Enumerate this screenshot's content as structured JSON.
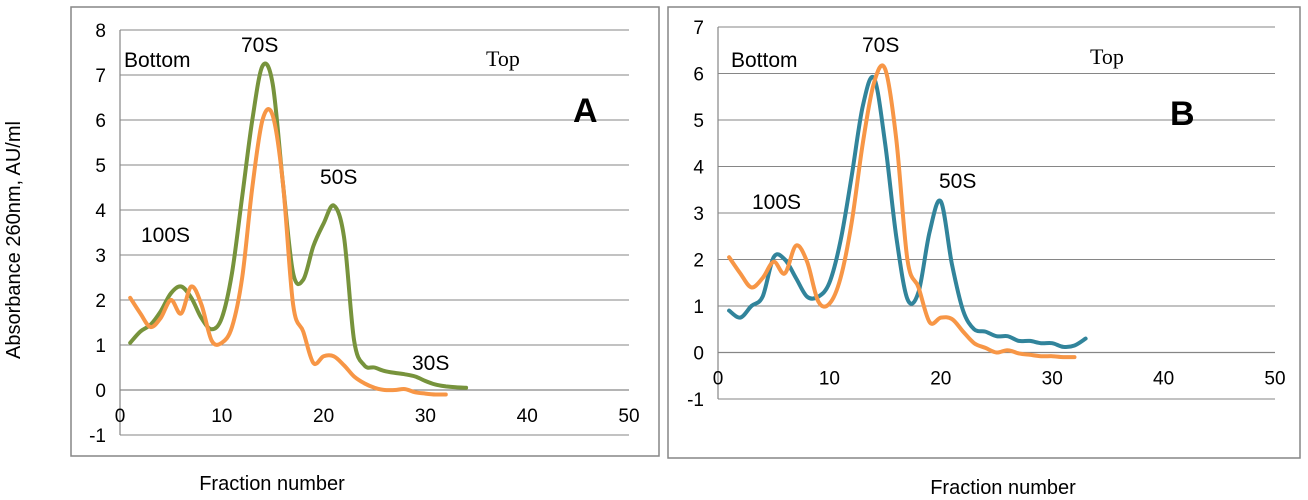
{
  "figure": {
    "ylabel": "Absorbance 260nm,  AU/ml"
  },
  "chart_data": [
    {
      "type": "line",
      "panel_label": "A",
      "xlabel": "Fraction number",
      "xlim": [
        0,
        50
      ],
      "ylim": [
        -1,
        8
      ],
      "x_ticks": [
        "0",
        "10",
        "20",
        "30",
        "40",
        "50"
      ],
      "y_ticks": [
        "-1",
        "0",
        "1",
        "2",
        "3",
        "4",
        "5",
        "6",
        "7",
        "8"
      ],
      "grid": true,
      "annotations": {
        "bottom": "Bottom",
        "top": "Top",
        "peaks": [
          "100S",
          "70S",
          "50S",
          "30S"
        ]
      },
      "series": [
        {
          "color": "#77933c",
          "points": [
            [
              1,
              1.05
            ],
            [
              2,
              1.3
            ],
            [
              3,
              1.45
            ],
            [
              4,
              1.75
            ],
            [
              5,
              2.15
            ],
            [
              6,
              2.3
            ],
            [
              7,
              2.05
            ],
            [
              8,
              1.6
            ],
            [
              9,
              1.35
            ],
            [
              10,
              1.6
            ],
            [
              11,
              2.6
            ],
            [
              12,
              4.3
            ],
            [
              13,
              6.0
            ],
            [
              14,
              7.2
            ],
            [
              15,
              6.8
            ],
            [
              16,
              4.6
            ],
            [
              17,
              2.6
            ],
            [
              18,
              2.45
            ],
            [
              19,
              3.2
            ],
            [
              20,
              3.7
            ],
            [
              21,
              4.1
            ],
            [
              22,
              3.4
            ],
            [
              23,
              1.1
            ],
            [
              24,
              0.55
            ],
            [
              25,
              0.5
            ],
            [
              26,
              0.42
            ],
            [
              27,
              0.38
            ],
            [
              28,
              0.35
            ],
            [
              29,
              0.3
            ],
            [
              30,
              0.2
            ],
            [
              31,
              0.12
            ],
            [
              32,
              0.08
            ],
            [
              33,
              0.06
            ],
            [
              34,
              0.05
            ]
          ]
        },
        {
          "color": "#f79646",
          "points": [
            [
              1,
              2.05
            ],
            [
              2,
              1.7
            ],
            [
              3,
              1.4
            ],
            [
              4,
              1.6
            ],
            [
              5,
              2.0
            ],
            [
              6,
              1.7
            ],
            [
              7,
              2.3
            ],
            [
              8,
              1.9
            ],
            [
              9,
              1.1
            ],
            [
              10,
              1.05
            ],
            [
              11,
              1.4
            ],
            [
              12,
              2.5
            ],
            [
              13,
              4.5
            ],
            [
              14,
              6.0
            ],
            [
              15,
              6.1
            ],
            [
              16,
              4.6
            ],
            [
              17,
              1.9
            ],
            [
              18,
              1.3
            ],
            [
              19,
              0.6
            ],
            [
              20,
              0.75
            ],
            [
              21,
              0.75
            ],
            [
              22,
              0.55
            ],
            [
              23,
              0.3
            ],
            [
              24,
              0.15
            ],
            [
              25,
              0.05
            ],
            [
              26,
              0.0
            ],
            [
              27,
              0.0
            ],
            [
              28,
              0.02
            ],
            [
              29,
              -0.05
            ],
            [
              30,
              -0.08
            ],
            [
              31,
              -0.1
            ],
            [
              32,
              -0.1
            ]
          ]
        }
      ]
    },
    {
      "type": "line",
      "panel_label": "B",
      "xlabel": "Fraction number",
      "xlim": [
        0,
        50
      ],
      "ylim": [
        -1,
        7
      ],
      "x_ticks": [
        "0",
        "10",
        "20",
        "30",
        "40",
        "50"
      ],
      "y_ticks": [
        "-1",
        "0",
        "1",
        "2",
        "3",
        "4",
        "5",
        "6",
        "7"
      ],
      "grid": true,
      "annotations": {
        "bottom": "Bottom",
        "top": "Top",
        "peaks": [
          "100S",
          "70S",
          "50S"
        ]
      },
      "series": [
        {
          "color": "#31849b",
          "points": [
            [
              1,
              0.9
            ],
            [
              2,
              0.75
            ],
            [
              3,
              1.0
            ],
            [
              4,
              1.2
            ],
            [
              5,
              2.05
            ],
            [
              6,
              2.0
            ],
            [
              7,
              1.6
            ],
            [
              8,
              1.2
            ],
            [
              9,
              1.2
            ],
            [
              10,
              1.5
            ],
            [
              11,
              2.4
            ],
            [
              12,
              3.8
            ],
            [
              13,
              5.3
            ],
            [
              14,
              5.9
            ],
            [
              15,
              4.5
            ],
            [
              16,
              2.5
            ],
            [
              17,
              1.15
            ],
            [
              18,
              1.3
            ],
            [
              19,
              2.6
            ],
            [
              20,
              3.25
            ],
            [
              21,
              1.9
            ],
            [
              22,
              0.9
            ],
            [
              23,
              0.5
            ],
            [
              24,
              0.45
            ],
            [
              25,
              0.35
            ],
            [
              26,
              0.35
            ],
            [
              27,
              0.25
            ],
            [
              28,
              0.25
            ],
            [
              29,
              0.2
            ],
            [
              30,
              0.2
            ],
            [
              31,
              0.12
            ],
            [
              32,
              0.15
            ],
            [
              33,
              0.3
            ]
          ]
        },
        {
          "color": "#f79646",
          "points": [
            [
              1,
              2.05
            ],
            [
              2,
              1.7
            ],
            [
              3,
              1.4
            ],
            [
              4,
              1.6
            ],
            [
              5,
              1.95
            ],
            [
              6,
              1.7
            ],
            [
              7,
              2.3
            ],
            [
              8,
              1.95
            ],
            [
              9,
              1.1
            ],
            [
              10,
              1.05
            ],
            [
              11,
              1.6
            ],
            [
              12,
              2.8
            ],
            [
              13,
              4.5
            ],
            [
              14,
              5.8
            ],
            [
              15,
              6.1
            ],
            [
              16,
              4.6
            ],
            [
              17,
              2.0
            ],
            [
              18,
              1.4
            ],
            [
              19,
              0.65
            ],
            [
              20,
              0.75
            ],
            [
              21,
              0.72
            ],
            [
              22,
              0.45
            ],
            [
              23,
              0.2
            ],
            [
              24,
              0.1
            ],
            [
              25,
              0.0
            ],
            [
              26,
              0.05
            ],
            [
              27,
              -0.02
            ],
            [
              28,
              -0.05
            ],
            [
              29,
              -0.08
            ],
            [
              30,
              -0.08
            ],
            [
              31,
              -0.1
            ],
            [
              32,
              -0.1
            ]
          ]
        }
      ]
    }
  ]
}
